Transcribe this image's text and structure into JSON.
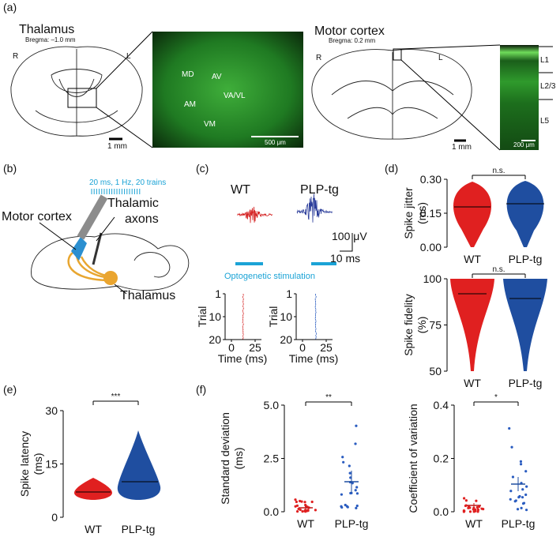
{
  "panels": {
    "a": {
      "label": "(a)",
      "left": {
        "title": "Thalamus",
        "bregma": "Bregma: –1.0 mm",
        "r": "R",
        "l": "L",
        "scale": "1 mm",
        "regions": [
          "MD",
          "AV",
          "AM",
          "VA/VL",
          "VM"
        ],
        "image_scale": "500 μm"
      },
      "right": {
        "title": "Motor cortex",
        "bregma": "Bregma: 0.2 mm",
        "r": "R",
        "l": "L",
        "scale": "1 mm",
        "layers": [
          "L1",
          "L2/3",
          "L5"
        ],
        "image_scale": "200 μm"
      }
    },
    "b": {
      "label": "(b)",
      "stimulus": "20 ms, 1 Hz, 20 trains",
      "motor_cortex": "Motor cortex",
      "axons": [
        "Thalamic",
        "axons"
      ],
      "thalamus": "Thalamus"
    },
    "c": {
      "label": "(c)",
      "groups": [
        "WT",
        "PLP-tg"
      ],
      "voltage_scale": "100 μV",
      "time_scale": "10 ms",
      "stimulation": "Optogenetic stimulation",
      "raster": {
        "y_label": "Trial",
        "yticks": [
          "1",
          "10",
          "20"
        ],
        "xticks": [
          "0",
          "25"
        ],
        "x_label": "Time (ms)"
      }
    },
    "d": {
      "label": "(d)",
      "jitter": {
        "y_label": "Spike jitter",
        "y_unit": "(ms)",
        "yticks": [
          "0.30",
          "0.15",
          "0.00"
        ],
        "significance": "n.s.",
        "categories": [
          "WT",
          "PLP-tg"
        ]
      },
      "fidelity": {
        "y_label": "Spike fidelity",
        "y_unit": "(%)",
        "yticks": [
          "100",
          "75",
          "50"
        ],
        "significance": "n.s.",
        "categories": [
          "WT",
          "PLP-tg"
        ]
      }
    },
    "e": {
      "label": "(e)",
      "y_label": "Spike latency",
      "y_unit": "(ms)",
      "yticks": [
        "30",
        "15",
        "0"
      ],
      "significance": "***",
      "categories": [
        "WT",
        "PLP-tg"
      ]
    },
    "f": {
      "label": "(f)",
      "sd": {
        "y_label": "Standard deviation",
        "y_unit": "(ms)",
        "yticks": [
          "5.0",
          "2.5",
          "0.0"
        ],
        "significance": "**",
        "categories": [
          "WT",
          "PLP-tg"
        ]
      },
      "cv": {
        "y_label": "Coefficient of variation",
        "yticks": [
          "0.4",
          "0.2",
          "0.0"
        ],
        "significance": "*",
        "categories": [
          "WT",
          "PLP-tg"
        ]
      }
    }
  }
}
